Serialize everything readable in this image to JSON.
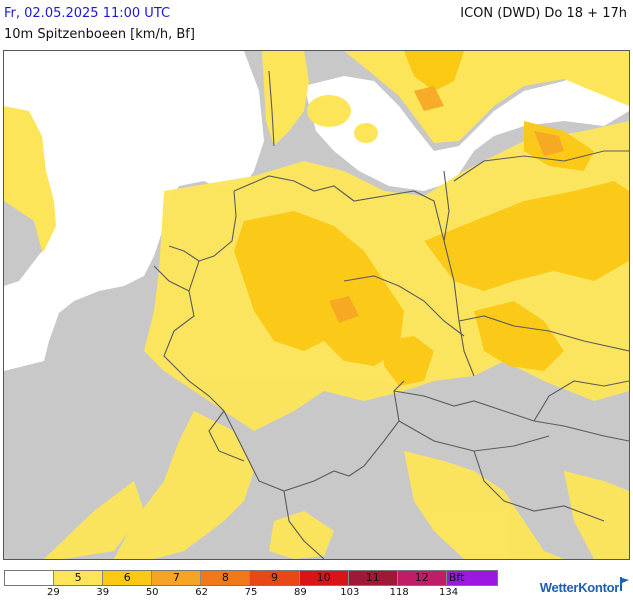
{
  "header": {
    "date": "Fr, 02.05.2025 11:00 UTC",
    "model": "ICON (DWD) Do 18 + 17h",
    "parameter": "10m Spitzenboeen [km/h, Bf]"
  },
  "colors": {
    "sea": "#ffffff",
    "land_base": "#c8c8c8",
    "bf5": "#fde55a",
    "bf6": "#fbc814",
    "bf7": "#f5a523",
    "border": "#5a5a5a"
  },
  "legend": {
    "classes": [
      {
        "label": "",
        "color": "#ffffff"
      },
      {
        "label": "5",
        "color": "#fde55a"
      },
      {
        "label": "6",
        "color": "#fbc814"
      },
      {
        "label": "7",
        "color": "#f5a523"
      },
      {
        "label": "8",
        "color": "#f07818"
      },
      {
        "label": "9",
        "color": "#e84818"
      },
      {
        "label": "10",
        "color": "#d81418"
      },
      {
        "label": "11",
        "color": "#a01838"
      },
      {
        "label": "12",
        "color": "#c01c68"
      },
      {
        "label": "Bft",
        "color": "#9a18e0"
      }
    ],
    "ticks": [
      "29",
      "39",
      "50",
      "62",
      "75",
      "89",
      "103",
      "118",
      "134"
    ]
  },
  "brand": "WetterKontor"
}
